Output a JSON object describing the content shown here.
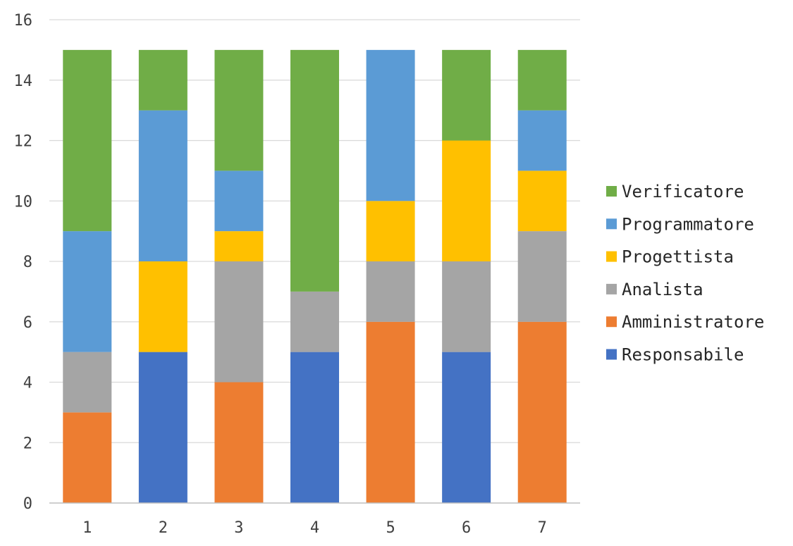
{
  "chart_data": {
    "type": "bar",
    "stacked": true,
    "title": "",
    "xlabel": "",
    "ylabel": "",
    "categories": [
      "1",
      "2",
      "3",
      "4",
      "5",
      "6",
      "7"
    ],
    "ylim": [
      0,
      16
    ],
    "yticks": [
      "0",
      "2",
      "4",
      "6",
      "8",
      "10",
      "12",
      "14",
      "16"
    ],
    "grid": true,
    "legend_position": "right",
    "series": [
      {
        "name": "Responsabile",
        "color": "#4472c4",
        "values": [
          0,
          5,
          0,
          5,
          0,
          5,
          0
        ]
      },
      {
        "name": "Amministratore",
        "color": "#ed7d31",
        "values": [
          3,
          0,
          4,
          0,
          6,
          0,
          6
        ]
      },
      {
        "name": "Analista",
        "color": "#a5a5a5",
        "values": [
          2,
          0,
          4,
          2,
          2,
          3,
          3
        ]
      },
      {
        "name": "Progettista",
        "color": "#ffc000",
        "values": [
          0,
          3,
          1,
          0,
          2,
          4,
          2
        ]
      },
      {
        "name": "Programmatore",
        "color": "#5b9bd5",
        "values": [
          4,
          5,
          2,
          0,
          5,
          0,
          2
        ]
      },
      {
        "name": "Verificatore",
        "color": "#70ad47",
        "values": [
          6,
          2,
          4,
          8,
          0,
          3,
          2
        ]
      }
    ]
  }
}
